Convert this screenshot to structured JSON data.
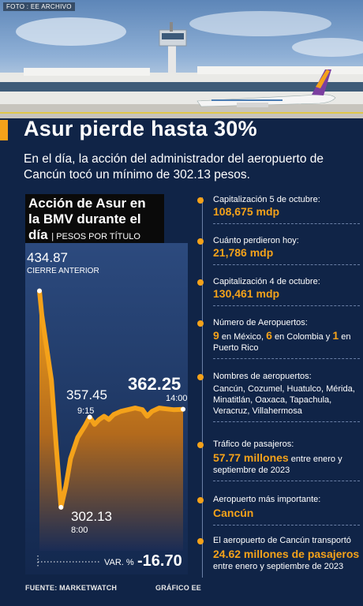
{
  "photo_credit": "FOTO : EE  ARCHIVO",
  "headline": "Asur pierde hasta 30%",
  "subhead": "En el día, la acción del administrador del aeropuerto de Cancún tocó un mínimo de 302.13 pesos.",
  "chart_title_main": "Acción de Asur en la BMV durante el día",
  "chart_title_unit": "| PESOS POR TÍTULO",
  "chart_data": {
    "type": "area",
    "title": "Acción de Asur en la BMV durante el día",
    "ylabel": "PESOS POR TÍTULO",
    "ylim": [
      290,
      440
    ],
    "points": [
      {
        "x": 0,
        "y": 434.87
      },
      {
        "x": 1,
        "y": 420
      },
      {
        "x": 3,
        "y": 400
      },
      {
        "x": 5,
        "y": 380
      },
      {
        "x": 7,
        "y": 340
      },
      {
        "x": 9,
        "y": 302.13
      },
      {
        "x": 11,
        "y": 315
      },
      {
        "x": 13,
        "y": 332
      },
      {
        "x": 16,
        "y": 345
      },
      {
        "x": 19,
        "y": 352
      },
      {
        "x": 21,
        "y": 357.45
      },
      {
        "x": 23,
        "y": 353
      },
      {
        "x": 25,
        "y": 356
      },
      {
        "x": 27,
        "y": 358
      },
      {
        "x": 29,
        "y": 356
      },
      {
        "x": 31,
        "y": 359
      },
      {
        "x": 34,
        "y": 361
      },
      {
        "x": 37,
        "y": 362
      },
      {
        "x": 40,
        "y": 363
      },
      {
        "x": 43,
        "y": 362
      },
      {
        "x": 45,
        "y": 358
      },
      {
        "x": 47,
        "y": 361
      },
      {
        "x": 50,
        "y": 363
      },
      {
        "x": 53,
        "y": 362.5
      },
      {
        "x": 56,
        "y": 362
      },
      {
        "x": 60,
        "y": 362.25
      }
    ],
    "annotations": [
      {
        "value": "434.87",
        "label": "CIERRE ANTERIOR"
      },
      {
        "value": "357.45",
        "label": "9:15"
      },
      {
        "value": "302.13",
        "label": "8:00"
      },
      {
        "value": "362.25",
        "label": "14:00"
      }
    ],
    "variation_label": "VAR. %",
    "variation_value": "-16.70"
  },
  "source": "FUENTE: MARKETWATCH",
  "graphic_credit": "GRÁFICO EE",
  "facts": [
    {
      "label": "Capitalización 5 de octubre:",
      "value": "108,675 mdp"
    },
    {
      "label": "Cuánto perdieron hoy:",
      "value": "21,786 mdp"
    },
    {
      "label": "Capitalización 4 de octubre:",
      "value": "130,461 mdp"
    },
    {
      "label": "Número de Aeropuertos:",
      "n1": "9",
      "t1": " en México, ",
      "n2": "6",
      "t2": " en Colombia y ",
      "n3": "1",
      "t3": " en Puerto Rico"
    },
    {
      "label": "Nombres de aeropuertos:",
      "text": "Cancún, Cozumel, Huatulco, Mérida, Minatitlán, Oaxaca, Tapachula, Veracruz, Villahermosa"
    },
    {
      "label": "Tráfico de pasajeros:",
      "value": "57.77 millones",
      "rest": " entre enero y septiembre de 2023"
    },
    {
      "label": "Aeropuerto más importante:",
      "value": "Cancún"
    },
    {
      "label": "El aeropuerto de Cancún transportó",
      "value": "24.62 millones de pasajeros",
      "rest": " entre enero y septiembre de 2023"
    }
  ]
}
